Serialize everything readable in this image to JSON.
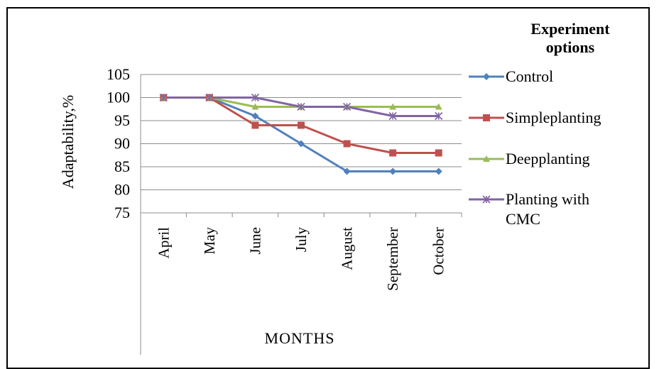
{
  "chart_data": {
    "type": "line",
    "categories": [
      "April",
      "May",
      "June",
      "July",
      "August",
      "September",
      "October"
    ],
    "series": [
      {
        "name": "Control",
        "values": [
          100,
          100,
          96,
          90,
          84,
          84,
          84
        ],
        "color": "#4f81bd",
        "marker": "diamond"
      },
      {
        "name": "Simpleplanting",
        "values": [
          100,
          100,
          94,
          94,
          90,
          88,
          88
        ],
        "color": "#c0504d",
        "marker": "square"
      },
      {
        "name": "Deepplanting",
        "values": [
          100,
          100,
          98,
          98,
          98,
          98,
          98
        ],
        "color": "#9bbb59",
        "marker": "triangle"
      },
      {
        "name": "Planting with CMC",
        "name_lines": [
          "Planting with",
          "CMC"
        ],
        "values": [
          100,
          100,
          100,
          98,
          98,
          96,
          96
        ],
        "color": "#8064a2",
        "marker": "star"
      }
    ],
    "legend_title_lines": [
      "Experiment",
      "options"
    ],
    "xlabel": "MONTHS",
    "ylabel": "Adaptability,%",
    "ylim": [
      75,
      105
    ],
    "yticks": [
      75,
      80,
      85,
      90,
      95,
      100,
      105
    ],
    "grid": true,
    "legend": "right"
  }
}
